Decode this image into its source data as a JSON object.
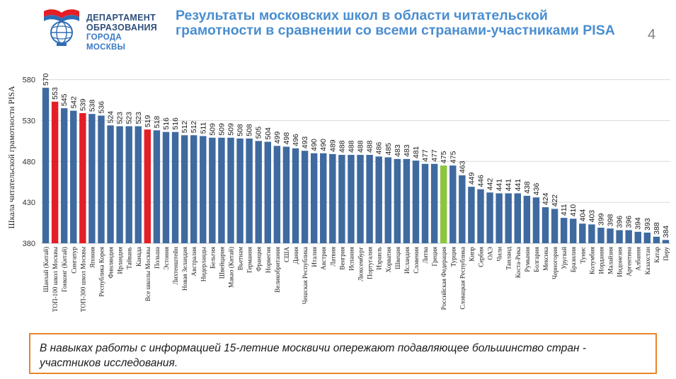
{
  "logo": {
    "line1": "ДЕПАРТАМЕНТ",
    "line2": "ОБРАЗОВАНИЯ",
    "line3": "ГОРОДА МОСКВЫ",
    "icon": "book-globe-emblem-icon"
  },
  "slide": {
    "title": "Результаты московских школ в области читательской грамотности в сравнении со всеми странами-участниками PISA",
    "page_number": "4"
  },
  "note": {
    "text": "В навыках работы с информацией 15-летние москвичи опережают подавляющее большинство стран - участников исследования."
  },
  "colors": {
    "bar_default": "#3f6aa0",
    "bar_moscow": "#e41e26",
    "bar_russia": "#8cc63f",
    "title": "#4a8ed0",
    "note_border": "#e8862a"
  },
  "chart_data": {
    "type": "bar",
    "title": "",
    "xlabel": "",
    "ylabel": "Шкала читательской грамотности PISA",
    "ylim": [
      380,
      590
    ],
    "yticks": [
      380,
      430,
      480,
      530,
      580
    ],
    "grid": true,
    "categories": [
      "Шанхай (Китай)",
      "ТОП-100 школ Москвы",
      "Гонконг (Китай)",
      "Сингапур",
      "ТОП-300 школ Москвы",
      "Япония",
      "Республика Корея",
      "Финляндия",
      "Ирландия",
      "Тайвань",
      "Канада",
      "Все школы Москвы",
      "Польша",
      "Эстония",
      "Лихтенштейн",
      "Новая Зеландия",
      "Австралия",
      "Нидерланды",
      "Бельгия",
      "Швейцария",
      "Макао (Китай)",
      "Вьетнам",
      "Германия",
      "Франция",
      "Норвегия",
      "Великобритания",
      "США",
      "Дания",
      "Чешская Республика",
      "Италия",
      "Австрия",
      "Латвия",
      "Венгрия",
      "Испания",
      "Люксембург",
      "Португалия",
      "Израиль",
      "Хорватия",
      "Швеция",
      "Исландия",
      "Словения",
      "Литва",
      "Греция",
      "Российская Федерация",
      "Турция",
      "Словацкая Республика",
      "Кипр",
      "Сербия",
      "ОАЭ",
      "Чили",
      "Таиланд",
      "Коста-Рика",
      "Румыния",
      "Болгария",
      "Мексика",
      "Черногория",
      "Уругвай",
      "Бразилия",
      "Тунис",
      "Колумбия",
      "Иордания",
      "Малайзия",
      "Индонезия",
      "Аргентина",
      "Албания",
      "Казахстан",
      "Катар",
      "Перу"
    ],
    "values": [
      570,
      553,
      545,
      542,
      539,
      538,
      536,
      524,
      523,
      523,
      523,
      519,
      518,
      516,
      516,
      512,
      512,
      511,
      509,
      509,
      509,
      508,
      508,
      505,
      504,
      499,
      498,
      496,
      493,
      490,
      490,
      489,
      488,
      488,
      488,
      488,
      486,
      485,
      483,
      483,
      481,
      477,
      477,
      475,
      475,
      463,
      449,
      446,
      442,
      441,
      441,
      441,
      438,
      436,
      424,
      422,
      411,
      410,
      404,
      403,
      399,
      398,
      396,
      396,
      394,
      393,
      388,
      384
    ],
    "highlight": {
      "ТОП-100 школ Москвы": "moscow",
      "ТОП-300 школ Москвы": "moscow",
      "Все школы Москвы": "moscow",
      "Российская Федерация": "russia"
    }
  }
}
